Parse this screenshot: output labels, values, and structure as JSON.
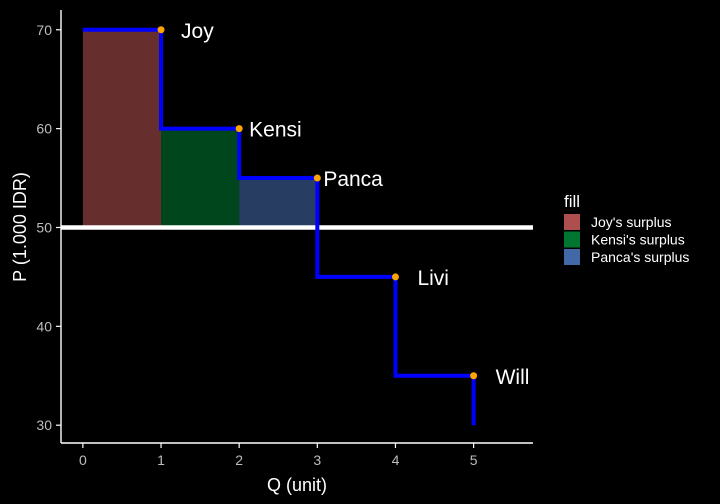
{
  "chart_data": {
    "type": "step",
    "xlabel": "Q (unit)",
    "ylabel": "P (1.000 IDR)",
    "xlim": [
      -0.28,
      5.76
    ],
    "ylim": [
      28.2,
      72.0
    ],
    "x_ticks": [
      0,
      1,
      2,
      3,
      4,
      5
    ],
    "y_ticks": [
      30,
      40,
      50,
      60,
      70
    ],
    "price_line": 50,
    "demand_step": [
      [
        0,
        70
      ],
      [
        1,
        70
      ],
      [
        1,
        60
      ],
      [
        2,
        60
      ],
      [
        2,
        55
      ],
      [
        3,
        55
      ],
      [
        3,
        45
      ],
      [
        4,
        45
      ],
      [
        4,
        35
      ],
      [
        5,
        35
      ],
      [
        5,
        30
      ]
    ],
    "points": [
      {
        "label": "Joy",
        "x": 1,
        "y": 70
      },
      {
        "label": "Kensi",
        "x": 2,
        "y": 60
      },
      {
        "label": "Panca",
        "x": 3,
        "y": 55
      },
      {
        "label": "Livi",
        "x": 4,
        "y": 45
      },
      {
        "label": "Will",
        "x": 5,
        "y": 35
      }
    ],
    "surplus": [
      {
        "name": "Joy's surplus",
        "x0": 0,
        "x1": 1,
        "y0": 50,
        "y1": 70,
        "color": "#cd5c5c"
      },
      {
        "name": "Kensi's surplus",
        "x0": 1,
        "x1": 2,
        "y0": 50,
        "y1": 60,
        "color": "#008b3a"
      },
      {
        "name": "Panca's surplus",
        "x0": 2,
        "x1": 3,
        "y0": 50,
        "y1": 55,
        "color": "#4f7ac4"
      }
    ],
    "legend": {
      "title": "fill",
      "placement": "right"
    },
    "colors": {
      "step": "#0000ff",
      "point": "#ffa500",
      "price_line": "#ffffff",
      "tick": "#bdbdbd"
    },
    "grid": false
  }
}
